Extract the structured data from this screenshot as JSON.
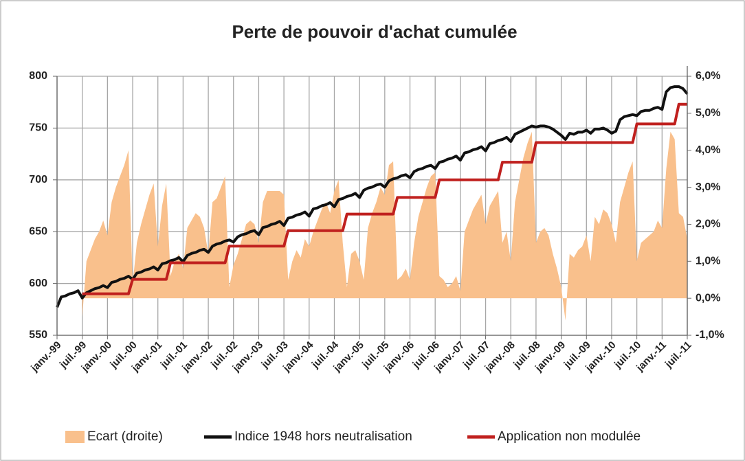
{
  "chart_data": {
    "type": "line",
    "title": "Perte de pouvoir d'achat cumulée",
    "categories": [
      "janv.-99",
      null,
      null,
      null,
      null,
      null,
      "juil.-99",
      null,
      null,
      null,
      null,
      null,
      "janv.-00",
      null,
      null,
      null,
      null,
      null,
      "juil.-00",
      null,
      null,
      null,
      null,
      null,
      "janv.-01",
      null,
      null,
      null,
      null,
      null,
      "juil.-01",
      null,
      null,
      null,
      null,
      null,
      "janv.-02",
      null,
      null,
      null,
      null,
      null,
      "juil.-02",
      null,
      null,
      null,
      null,
      null,
      "janv.-03",
      null,
      null,
      null,
      null,
      null,
      "juil.-03",
      null,
      null,
      null,
      null,
      null,
      "janv.-04",
      null,
      null,
      null,
      null,
      null,
      "juil.-04",
      null,
      null,
      null,
      null,
      null,
      "janv.-05",
      null,
      null,
      null,
      null,
      null,
      "juil.-05",
      null,
      null,
      null,
      null,
      null,
      "janv.-06",
      null,
      null,
      null,
      null,
      null,
      "juil.-06",
      null,
      null,
      null,
      null,
      null,
      "janv.-07",
      null,
      null,
      null,
      null,
      null,
      "juil.-07",
      null,
      null,
      null,
      null,
      null,
      "janv.-08",
      null,
      null,
      null,
      null,
      null,
      "juil.-08",
      null,
      null,
      null,
      null,
      null,
      "janv.-09",
      null,
      null,
      null,
      null,
      null,
      "juil.-09",
      null,
      null,
      null,
      null,
      null,
      "janv.-10",
      null,
      null,
      null,
      null,
      null,
      "juil.-10",
      null,
      null,
      null,
      null,
      null,
      "janv.-11",
      null,
      null,
      null,
      null,
      null,
      "juil.-11"
    ],
    "series": [
      {
        "name": "Ecart (droite)",
        "color": "#f9c08c",
        "kind": "area",
        "axis": "y2",
        "values": [
          null,
          null,
          null,
          null,
          null,
          null,
          -0.5,
          1.0,
          1.3,
          1.6,
          1.8,
          2.1,
          1.7,
          2.6,
          3.0,
          3.3,
          3.6,
          4.0,
          0.4,
          1.5,
          2.0,
          2.4,
          2.8,
          3.1,
          1.4,
          2.5,
          3.1,
          0.6,
          1.0,
          1.2,
          0.8,
          1.9,
          2.1,
          2.3,
          2.2,
          1.9,
          1.2,
          2.6,
          2.7,
          3.0,
          3.3,
          0.3,
          0.9,
          1.2,
          1.6,
          2.0,
          2.1,
          2.0,
          1.5,
          2.6,
          2.9,
          2.9,
          2.9,
          2.9,
          2.8,
          0.5,
          1.0,
          1.3,
          1.1,
          1.6,
          1.4,
          1.8,
          2.1,
          2.4,
          2.6,
          2.3,
          2.9,
          3.2,
          1.5,
          0.3,
          1.2,
          1.3,
          1.0,
          0.5,
          1.9,
          2.3,
          2.6,
          3.0,
          2.8,
          3.6,
          3.7,
          0.5,
          0.6,
          0.8,
          0.5,
          1.5,
          2.2,
          2.6,
          3.0,
          3.3,
          3.4,
          0.6,
          0.5,
          0.3,
          0.4,
          0.6,
          0.2,
          1.8,
          2.1,
          2.4,
          2.6,
          2.8,
          2.0,
          2.5,
          2.7,
          2.9,
          1.5,
          1.8,
          1.0,
          2.6,
          3.2,
          3.8,
          4.2,
          4.5,
          1.5,
          1.8,
          1.9,
          1.7,
          1.2,
          0.8,
          0.3,
          -0.6,
          1.2,
          1.1,
          1.3,
          1.4,
          1.7,
          1.0,
          2.2,
          2.0,
          2.4,
          2.3,
          2.0,
          1.5,
          2.6,
          3.0,
          3.4,
          3.7,
          1.0,
          1.5,
          1.6,
          1.7,
          1.8,
          2.1,
          1.9,
          3.5,
          4.5,
          4.3,
          2.3,
          2.2,
          1.6
        ]
      },
      {
        "name": "Indice 1948 hors neutralisation",
        "color": "#111111",
        "kind": "line",
        "values": [
          577,
          587,
          588,
          590,
          591,
          593,
          586,
          591,
          593,
          595,
          596,
          598,
          596,
          601,
          602,
          604,
          605,
          607,
          604,
          610,
          611,
          613,
          614,
          616,
          613,
          619,
          620,
          622,
          623,
          625,
          621,
          627,
          629,
          630,
          632,
          633,
          630,
          636,
          638,
          639,
          641,
          642,
          640,
          645,
          647,
          648,
          650,
          651,
          647,
          654,
          655,
          657,
          658,
          660,
          656,
          663,
          664,
          666,
          667,
          669,
          665,
          672,
          673,
          675,
          676,
          678,
          674,
          681,
          682,
          684,
          685,
          687,
          683,
          690,
          692,
          693,
          695,
          696,
          693,
          699,
          701,
          702,
          704,
          705,
          702,
          708,
          710,
          711,
          713,
          714,
          711,
          717,
          718,
          720,
          721,
          723,
          719,
          726,
          727,
          729,
          730,
          732,
          728,
          735,
          736,
          738,
          739,
          741,
          737,
          744,
          746,
          748,
          750,
          752,
          751,
          752,
          752,
          751,
          749,
          746,
          743,
          739,
          745,
          744,
          746,
          746,
          748,
          745,
          749,
          749,
          750,
          748,
          745,
          747,
          758,
          761,
          762,
          763,
          762,
          766,
          767,
          767,
          769,
          770,
          768,
          785,
          789,
          790,
          790,
          788,
          783
        ]
      },
      {
        "name": "Application non modulée",
        "color": "#c0201e",
        "kind": "line",
        "values": [
          null,
          null,
          null,
          null,
          null,
          null,
          590,
          590,
          590,
          590,
          590,
          590,
          590,
          590,
          590,
          590,
          590,
          590,
          604,
          604,
          604,
          604,
          604,
          604,
          604,
          604,
          604,
          620,
          620,
          620,
          620,
          620,
          620,
          620,
          620,
          620,
          620,
          620,
          620,
          620,
          620,
          636,
          636,
          636,
          636,
          636,
          636,
          636,
          636,
          636,
          636,
          636,
          636,
          636,
          636,
          651,
          651,
          651,
          651,
          651,
          651,
          651,
          651,
          651,
          651,
          651,
          651,
          651,
          651,
          667,
          667,
          667,
          667,
          667,
          667,
          667,
          667,
          667,
          667,
          667,
          667,
          683,
          683,
          683,
          683,
          683,
          683,
          683,
          683,
          683,
          683,
          700,
          700,
          700,
          700,
          700,
          700,
          700,
          700,
          700,
          700,
          700,
          700,
          700,
          700,
          700,
          717,
          717,
          717,
          717,
          717,
          717,
          717,
          717,
          736,
          736,
          736,
          736,
          736,
          736,
          736,
          736,
          736,
          736,
          736,
          736,
          736,
          736,
          736,
          736,
          736,
          736,
          736,
          736,
          736,
          736,
          736,
          736,
          754,
          754,
          754,
          754,
          754,
          754,
          754,
          754,
          754,
          754,
          773,
          773,
          773
        ]
      }
    ],
    "ylim": [
      550,
      800
    ],
    "yticks": [
      550,
      600,
      650,
      700,
      750,
      800
    ],
    "y2lim": [
      -1,
      6
    ],
    "y2ticks": [
      {
        "value": -1,
        "label": "-1,0%"
      },
      {
        "value": 0,
        "label": "0,0%"
      },
      {
        "value": 1,
        "label": "1,0%"
      },
      {
        "value": 2,
        "label": "2,0%"
      },
      {
        "value": 3,
        "label": "3,0%"
      },
      {
        "value": 4,
        "label": "4,0%"
      },
      {
        "value": 5,
        "label": "5,0%"
      },
      {
        "value": 6,
        "label": "6,0%"
      }
    ],
    "grid": true,
    "legend": "bottom"
  }
}
